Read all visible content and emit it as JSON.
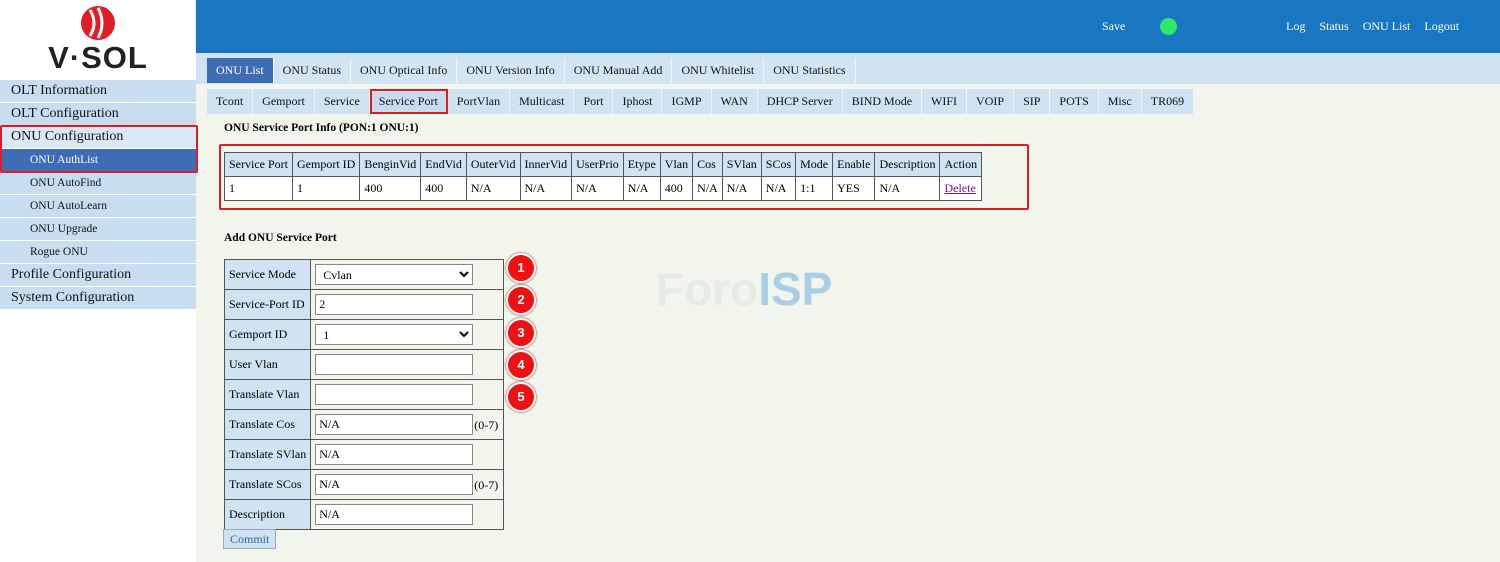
{
  "logo": {
    "brand": "V·SOL"
  },
  "topbar": {
    "save": "Save",
    "links": [
      "Log",
      "Status",
      "ONU List",
      "Logout"
    ]
  },
  "menu": {
    "items": [
      {
        "label": "OLT Information"
      },
      {
        "label": "OLT Configuration"
      },
      {
        "label": "ONU Configuration",
        "children": [
          "ONU AuthList",
          "ONU AutoFind",
          "ONU AutoLearn",
          "ONU Upgrade",
          "Rogue ONU"
        ],
        "active_child": 0
      },
      {
        "label": "Profile Configuration"
      },
      {
        "label": "System Configuration"
      }
    ]
  },
  "tabs": {
    "items": [
      "ONU List",
      "ONU Status",
      "ONU Optical Info",
      "ONU Version Info",
      "ONU Manual Add",
      "ONU Whitelist",
      "ONU Statistics"
    ],
    "active": 0
  },
  "subtabs": {
    "items": [
      "Tcont",
      "Gemport",
      "Service",
      "Service Port",
      "PortVlan",
      "Multicast",
      "Port",
      "Iphost",
      "IGMP",
      "WAN",
      "DHCP Server",
      "BIND Mode",
      "WIFI",
      "VOIP",
      "SIP",
      "POTS",
      "Misc",
      "TR069"
    ],
    "active": 3
  },
  "info": {
    "title": "ONU Service Port Info (PON:1 ONU:1)",
    "header": [
      "Service Port",
      "Gemport ID",
      "BenginVid",
      "EndVid",
      "OuterVid",
      "InnerVid",
      "UserPrio",
      "Etype",
      "Vlan",
      "Cos",
      "SVlan",
      "SCos",
      "Mode",
      "Enable",
      "Description",
      "Action"
    ],
    "rows": [
      [
        "1",
        "1",
        "400",
        "400",
        "N/A",
        "N/A",
        "N/A",
        "N/A",
        "400",
        "N/A",
        "N/A",
        "N/A",
        "1:1",
        "YES",
        "N/A",
        "Delete"
      ]
    ]
  },
  "form": {
    "title": "Add ONU Service Port",
    "fields": [
      {
        "label": "Service Mode",
        "kind": "select",
        "value": "Cvlan"
      },
      {
        "label": "Service-Port ID",
        "kind": "input",
        "value": "2"
      },
      {
        "label": "Gemport ID",
        "kind": "select",
        "value": "1"
      },
      {
        "label": "User Vlan",
        "kind": "input"
      },
      {
        "label": "Translate Vlan",
        "kind": "input"
      },
      {
        "label": "Translate Cos",
        "kind": "input",
        "value": "N/A",
        "hint": "(0-7)"
      },
      {
        "label": "Translate SVlan",
        "kind": "input",
        "value": "N/A"
      },
      {
        "label": "Translate SCos",
        "kind": "input",
        "value": "N/A",
        "hint": "(0-7)"
      },
      {
        "label": "Description",
        "kind": "input",
        "value": "N/A"
      }
    ],
    "commit": "Commit"
  },
  "markers": [
    "1",
    "2",
    "3",
    "4",
    "5"
  ],
  "watermark": {
    "faint": "Foro",
    "strong": "ISP"
  }
}
